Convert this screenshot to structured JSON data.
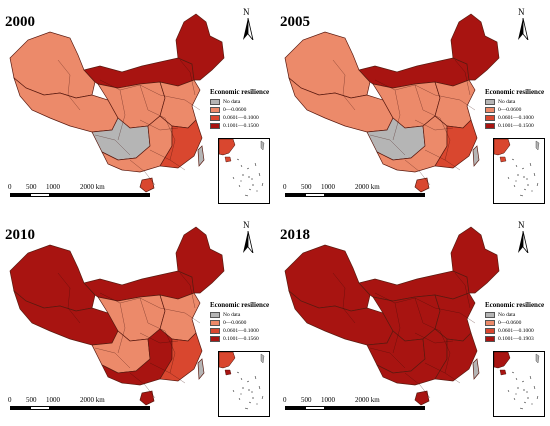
{
  "colors": {
    "no_data": "#b5b5b5",
    "class1": "#ec8a6a",
    "class2": "#d9472f",
    "class3": "#a81411",
    "border": "#5a1a10"
  },
  "legend_title": "Economic resilience",
  "scale_labels": [
    "0",
    "500",
    "1000",
    "2000 km"
  ],
  "north_label": "N",
  "panels": [
    {
      "year": "2000",
      "legend": [
        "No data",
        "0—0.0600",
        "0.0601—0.1000",
        "0.1001—0.1500"
      ],
      "region_classes": {
        "northeast": 3,
        "north_band": 3,
        "northwest": 1,
        "tibet": 1,
        "central": 1,
        "southwest": 0,
        "south": 1,
        "east": 1,
        "coast": 2,
        "hainan": 2,
        "taiwan": 0
      }
    },
    {
      "year": "2005",
      "legend": [
        "No data",
        "0—0.0600",
        "0.0601—0.1000",
        "0.1001—0.1500"
      ],
      "region_classes": {
        "northeast": 3,
        "north_band": 3,
        "northwest": 1,
        "tibet": 1,
        "central": 1,
        "southwest": 0,
        "south": 1,
        "east": 1,
        "coast": 2,
        "hainan": 2,
        "taiwan": 0
      }
    },
    {
      "year": "2010",
      "legend": [
        "No data",
        "0—0.0600",
        "0.0601—0.1000",
        "0.1001—0.1560"
      ],
      "region_classes": {
        "northeast": 3,
        "north_band": 3,
        "northwest": 3,
        "tibet": 3,
        "central": 1,
        "southwest": 1,
        "south": 3,
        "east": 1,
        "coast": 2,
        "hainan": 3,
        "taiwan": 0
      }
    },
    {
      "year": "2018",
      "legend": [
        "No data",
        "0—0.0600",
        "0.0601—0.1000",
        "0.1001—0.1903"
      ],
      "region_classes": {
        "northeast": 3,
        "north_band": 3,
        "northwest": 3,
        "tibet": 3,
        "central": 3,
        "southwest": 3,
        "south": 3,
        "east": 3,
        "coast": 3,
        "hainan": 3,
        "taiwan": 0
      }
    }
  ]
}
